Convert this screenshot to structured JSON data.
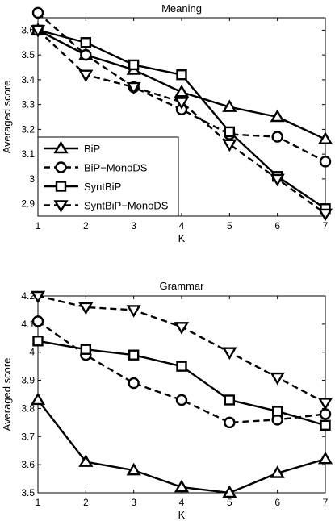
{
  "chart_data": [
    {
      "type": "line",
      "title": "Meaning",
      "xlabel": "K",
      "ylabel": "Averaged score",
      "xlim": [
        1,
        7
      ],
      "ylim": [
        2.85,
        3.65
      ],
      "x": [
        1,
        2,
        3,
        4,
        5,
        6,
        7
      ],
      "yticks": [
        2.9,
        3,
        3.1,
        3.2,
        3.3,
        3.4,
        3.5,
        3.6
      ],
      "ytick_labels": [
        "2.9",
        "3",
        "3.1",
        "3.2",
        "3.3",
        "3.4",
        "3.5",
        "3.6"
      ],
      "grid": false,
      "legend": "bottom-left",
      "series": [
        {
          "name": "BiP",
          "marker": "triangle-up",
          "dash": "solid",
          "values": [
            3.6,
            3.5,
            3.44,
            3.35,
            3.29,
            3.25,
            3.16
          ]
        },
        {
          "name": "BiP−MonoDS",
          "marker": "circle",
          "dash": "dashed",
          "values": [
            3.67,
            3.5,
            3.37,
            3.28,
            3.18,
            3.17,
            3.07
          ]
        },
        {
          "name": "SyntBiP",
          "marker": "square",
          "dash": "solid",
          "values": [
            3.6,
            3.55,
            3.46,
            3.42,
            3.19,
            3.01,
            2.88
          ]
        },
        {
          "name": "SyntBiP−MonoDS",
          "marker": "triangle-down",
          "dash": "dashed",
          "values": [
            3.6,
            3.42,
            3.37,
            3.31,
            3.14,
            3.0,
            2.86
          ]
        }
      ]
    },
    {
      "type": "line",
      "title": "Grammar",
      "xlabel": "K",
      "ylabel": "Averaged score",
      "xlim": [
        1,
        7
      ],
      "ylim": [
        3.5,
        4.2
      ],
      "x": [
        1,
        2,
        3,
        4,
        5,
        6,
        7
      ],
      "yticks": [
        3.5,
        3.6,
        3.7,
        3.8,
        3.9,
        4.0,
        4.1,
        4.2
      ],
      "ytick_labels": [
        "3.5",
        "3.6",
        "3.7",
        "3.8",
        "3.9",
        "4",
        "4.1",
        "4.2"
      ],
      "grid": false,
      "series": [
        {
          "marker": "triangle-up",
          "dash": "solid",
          "values": [
            3.83,
            3.61,
            3.58,
            3.52,
            3.5,
            3.57,
            3.62
          ]
        },
        {
          "marker": "circle",
          "dash": "dashed",
          "values": [
            4.11,
            3.99,
            3.89,
            3.83,
            3.75,
            3.76,
            3.78
          ]
        },
        {
          "marker": "square",
          "dash": "solid",
          "values": [
            4.04,
            4.01,
            3.99,
            3.95,
            3.83,
            3.79,
            3.74
          ]
        },
        {
          "marker": "triangle-down",
          "dash": "dashed",
          "values": [
            4.2,
            4.16,
            4.15,
            4.09,
            4.0,
            3.91,
            3.82
          ]
        }
      ]
    }
  ]
}
